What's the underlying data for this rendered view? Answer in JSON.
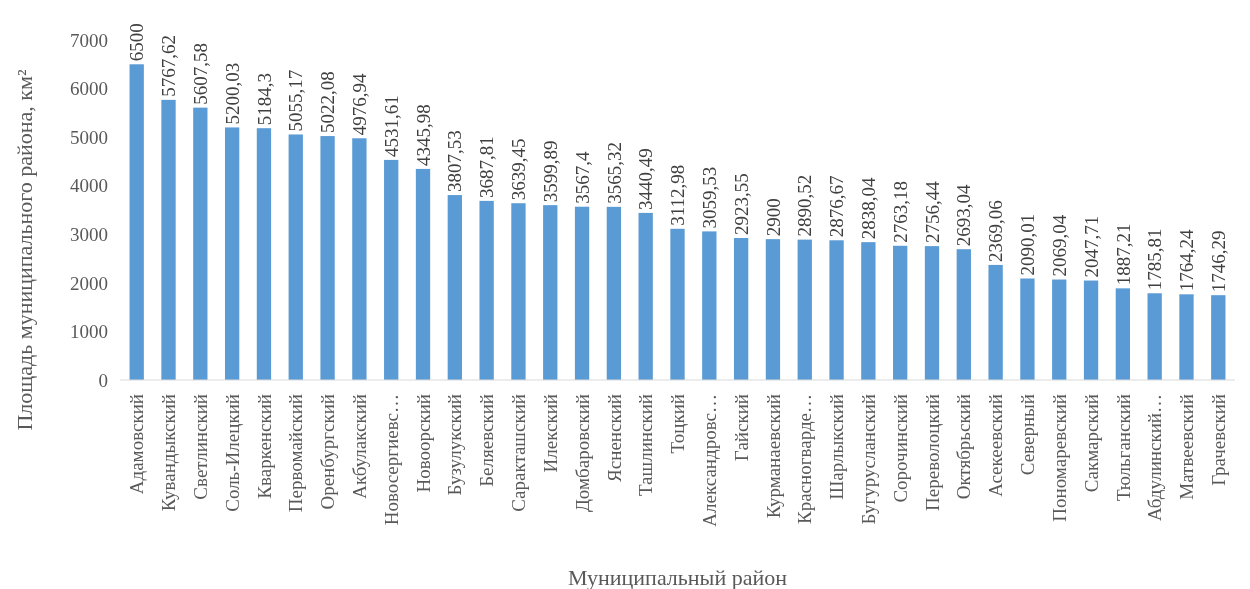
{
  "chart_data": {
    "type": "bar",
    "xlabel": "Муниципальный район",
    "ylabel": "Площадь муниципального района, км²",
    "categories": [
      "Адамовский",
      "Кувандыкский",
      "Светлинский",
      "Соль-Илецкий",
      "Кваркенский",
      "Первомайский",
      "Оренбургский",
      "Акбулакский",
      "Новосергиевс…",
      "Новоорский",
      "Бузулукский",
      "Беляевский",
      "Саракташский",
      "Илекский",
      "Домбаровский",
      "Ясненский",
      "Ташлинский",
      "Тоцкий",
      "Александровс…",
      "Гайский",
      "Курманаевский",
      "Красногварде…",
      "Шарлыкский",
      "Бугурусланский",
      "Сорочинский",
      "Переволоцкий",
      "Октябрьский",
      "Асекеевский",
      "Северный",
      "Пономаревский",
      "Сакмарский",
      "Тюльганский",
      "Абдулинский…",
      "Матвеевский",
      "Грачевский"
    ],
    "values": [
      6500,
      5767.62,
      5607.58,
      5200.03,
      5184.3,
      5055.17,
      5022.08,
      4976.94,
      4531.61,
      4345.98,
      3807.53,
      3687.81,
      3639.45,
      3599.89,
      3567.4,
      3565.32,
      3440.49,
      3112.98,
      3059.53,
      2923.55,
      2900,
      2890.52,
      2876.67,
      2838.04,
      2763.18,
      2756.44,
      2693.04,
      2369.06,
      2090.01,
      2069.04,
      2047.71,
      1887.21,
      1785.81,
      1764.24,
      1746.29
    ],
    "value_labels": [
      "6500",
      "5767,62",
      "5607,58",
      "5200,03",
      "5184,3",
      "5055,17",
      "5022,08",
      "4976,94",
      "4531,61",
      "4345,98",
      "3807,53",
      "3687,81",
      "3639,45",
      "3599,89",
      "3567,4",
      "3565,32",
      "3440,49",
      "3112,98",
      "3059,53",
      "2923,55",
      "2900",
      "2890,52",
      "2876,67",
      "2838,04",
      "2763,18",
      "2756,44",
      "2693,04",
      "2369,06",
      "2090,01",
      "2069,04",
      "2047,71",
      "1887,21",
      "1785,81",
      "1764,24",
      "1746,29"
    ],
    "color": "#5b9bd5",
    "ylim": [
      0,
      7000
    ],
    "yticks": [
      0,
      1000,
      2000,
      3000,
      4000,
      5000,
      6000,
      7000
    ],
    "grid": false
  }
}
